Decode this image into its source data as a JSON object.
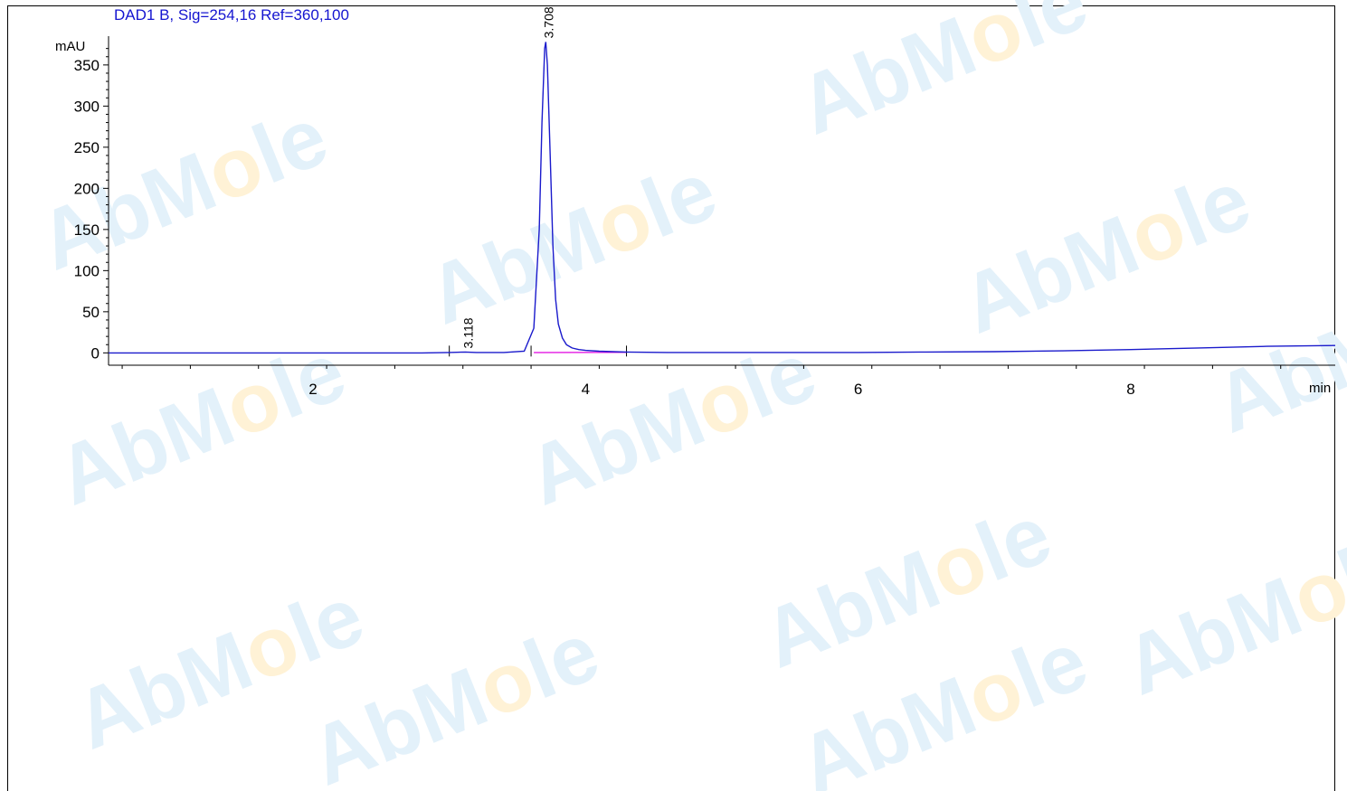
{
  "header": {
    "signal_title": "DAD1 B, Sig=254,16 Ref=360,100"
  },
  "watermark": {
    "text_a": "AbM",
    "text_o": "o",
    "text_b": "le",
    "color_main": "#e3f1fa",
    "color_o": "#fff2d6"
  },
  "chart_data": {
    "type": "line",
    "title": "DAD1 B, Sig=254,16 Ref=360,100",
    "ylabel": "mAU",
    "xlabel": "min",
    "xlim": [
      0.5,
      9.5
    ],
    "ylim": [
      -15,
      385
    ],
    "x_ticks": [
      2,
      4,
      6,
      8
    ],
    "y_ticks": [
      0,
      50,
      100,
      150,
      200,
      250,
      300,
      350
    ],
    "line_color": "#1a1acc",
    "baseline_color": "#e000e0",
    "series": [
      {
        "x": [
          0.5,
          1.0,
          1.5,
          2.0,
          2.5,
          2.8,
          3.0,
          3.118,
          3.2,
          3.4,
          3.55,
          3.62,
          3.66,
          3.68,
          3.7,
          3.708,
          3.72,
          3.74,
          3.76,
          3.78,
          3.8,
          3.83,
          3.86,
          3.9,
          3.95,
          4.0,
          4.1,
          4.3,
          4.6,
          5.0,
          5.5,
          6.0,
          6.5,
          7.0,
          7.5,
          8.0,
          8.5,
          9.0,
          9.5
        ],
        "y": [
          0,
          0,
          0,
          0,
          0,
          0,
          0.5,
          1,
          0.5,
          0.5,
          2,
          30,
          150,
          280,
          370,
          378,
          350,
          240,
          130,
          65,
          35,
          18,
          10,
          6,
          4,
          3,
          2,
          1,
          0.5,
          0.5,
          0.5,
          0.5,
          1,
          1.5,
          2.5,
          4,
          6,
          8,
          9
        ]
      }
    ],
    "peaks": [
      {
        "rt": "3.118",
        "x": 3.118,
        "y": 1
      },
      {
        "rt": "3.708",
        "x": 3.708,
        "y": 378
      }
    ],
    "integration_marks": [
      3.0,
      3.6,
      4.3
    ]
  }
}
